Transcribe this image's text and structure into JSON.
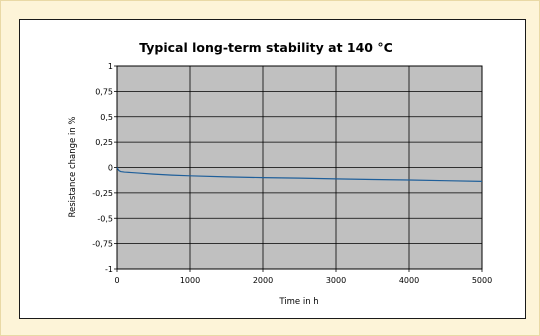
{
  "chart_data": {
    "type": "line",
    "title": "Typical long-term stability at 140 °C",
    "xlabel": "Time in h",
    "ylabel": "Resistance change in %",
    "xlim": [
      0,
      5000
    ],
    "ylim": [
      -1,
      1
    ],
    "x_ticks": [
      "0",
      "1000",
      "2000",
      "3000",
      "4000",
      "5000"
    ],
    "y_ticks": [
      "1",
      "0,75",
      "0,5",
      "0,25",
      "0",
      "-0,25",
      "-0,5",
      "-0,75",
      "-1"
    ],
    "grid": true,
    "legend": "none",
    "series": [
      {
        "color": "#1f5f9a",
        "x": [
          0,
          25,
          50,
          100,
          200,
          300,
          500,
          750,
          1000,
          1500,
          2000,
          2500,
          3000,
          3500,
          4000,
          4500,
          5000
        ],
        "y": [
          0,
          -0.03,
          -0.04,
          -0.045,
          -0.05,
          -0.055,
          -0.065,
          -0.075,
          -0.082,
          -0.092,
          -0.1,
          -0.105,
          -0.112,
          -0.118,
          -0.123,
          -0.13,
          -0.137
        ]
      }
    ],
    "plot_background": "#c0c0c0",
    "gridline_color": "#000000"
  }
}
